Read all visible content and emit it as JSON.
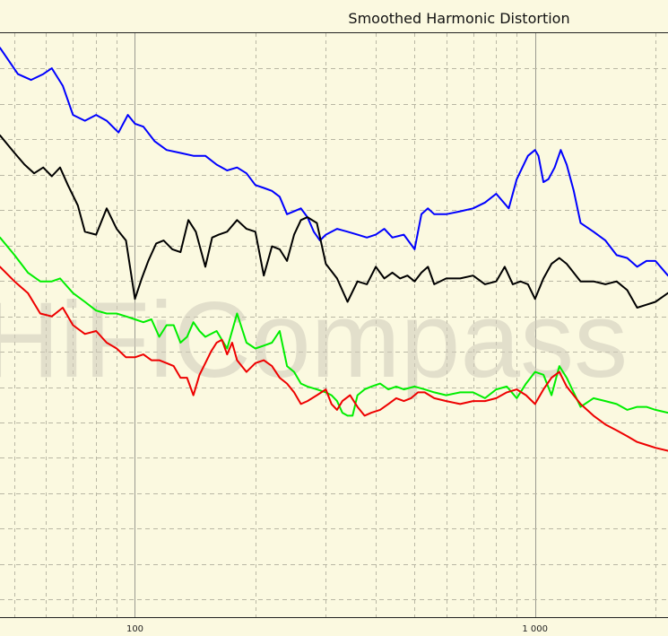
{
  "chart_data": {
    "type": "line",
    "title": "Smoothed Harmonic Distortion",
    "watermark": "HiFiCompass",
    "x_scale": "log",
    "xlim": [
      46,
      2150
    ],
    "ylim": [
      0,
      1
    ],
    "x_tick_labels": [
      {
        "x": 100,
        "label": "100"
      },
      {
        "x": 1000,
        "label": "1 000"
      }
    ],
    "y_gridlines": 16,
    "grid": true,
    "background_color": "#fbf9e0",
    "series": [
      {
        "color": "#0000ff",
        "points": [
          [
            46,
            0.975
          ],
          [
            51,
            0.93
          ],
          [
            55,
            0.92
          ],
          [
            59,
            0.93
          ],
          [
            62,
            0.94
          ],
          [
            66,
            0.91
          ],
          [
            70,
            0.86
          ],
          [
            75,
            0.85
          ],
          [
            80,
            0.86
          ],
          [
            85,
            0.85
          ],
          [
            91,
            0.83
          ],
          [
            96,
            0.86
          ],
          [
            100,
            0.845
          ],
          [
            105,
            0.84
          ],
          [
            112,
            0.815
          ],
          [
            120,
            0.8
          ],
          [
            130,
            0.795
          ],
          [
            140,
            0.79
          ],
          [
            150,
            0.79
          ],
          [
            160,
            0.775
          ],
          [
            170,
            0.765
          ],
          [
            180,
            0.77
          ],
          [
            190,
            0.76
          ],
          [
            200,
            0.74
          ],
          [
            210,
            0.735
          ],
          [
            220,
            0.73
          ],
          [
            230,
            0.72
          ],
          [
            240,
            0.69
          ],
          [
            250,
            0.695
          ],
          [
            260,
            0.7
          ],
          [
            270,
            0.685
          ],
          [
            280,
            0.66
          ],
          [
            290,
            0.645
          ],
          [
            300,
            0.655
          ],
          [
            320,
            0.665
          ],
          [
            340,
            0.66
          ],
          [
            360,
            0.655
          ],
          [
            380,
            0.65
          ],
          [
            400,
            0.655
          ],
          [
            420,
            0.665
          ],
          [
            440,
            0.65
          ],
          [
            470,
            0.655
          ],
          [
            500,
            0.63
          ],
          [
            520,
            0.69
          ],
          [
            540,
            0.7
          ],
          [
            560,
            0.69
          ],
          [
            600,
            0.69
          ],
          [
            650,
            0.695
          ],
          [
            700,
            0.7
          ],
          [
            750,
            0.71
          ],
          [
            800,
            0.725
          ],
          [
            860,
            0.7
          ],
          [
            900,
            0.75
          ],
          [
            960,
            0.79
          ],
          [
            1000,
            0.8
          ],
          [
            1020,
            0.79
          ],
          [
            1050,
            0.745
          ],
          [
            1080,
            0.75
          ],
          [
            1120,
            0.77
          ],
          [
            1160,
            0.8
          ],
          [
            1200,
            0.775
          ],
          [
            1250,
            0.73
          ],
          [
            1300,
            0.675
          ],
          [
            1400,
            0.66
          ],
          [
            1500,
            0.645
          ],
          [
            1600,
            0.62
          ],
          [
            1700,
            0.615
          ],
          [
            1800,
            0.6
          ],
          [
            1900,
            0.61
          ],
          [
            2000,
            0.61
          ],
          [
            2150,
            0.585
          ]
        ]
      },
      {
        "color": "#000000",
        "points": [
          [
            46,
            0.825
          ],
          [
            50,
            0.795
          ],
          [
            53,
            0.775
          ],
          [
            56,
            0.76
          ],
          [
            59,
            0.77
          ],
          [
            62,
            0.755
          ],
          [
            65,
            0.77
          ],
          [
            68,
            0.74
          ],
          [
            72,
            0.705
          ],
          [
            75,
            0.66
          ],
          [
            80,
            0.655
          ],
          [
            85,
            0.7
          ],
          [
            90,
            0.665
          ],
          [
            95,
            0.645
          ],
          [
            100,
            0.545
          ],
          [
            104,
            0.58
          ],
          [
            108,
            0.61
          ],
          [
            113,
            0.64
          ],
          [
            118,
            0.645
          ],
          [
            124,
            0.63
          ],
          [
            130,
            0.625
          ],
          [
            136,
            0.68
          ],
          [
            142,
            0.66
          ],
          [
            150,
            0.6
          ],
          [
            156,
            0.65
          ],
          [
            162,
            0.655
          ],
          [
            170,
            0.66
          ],
          [
            180,
            0.68
          ],
          [
            190,
            0.665
          ],
          [
            200,
            0.66
          ],
          [
            210,
            0.585
          ],
          [
            220,
            0.635
          ],
          [
            230,
            0.63
          ],
          [
            240,
            0.61
          ],
          [
            250,
            0.655
          ],
          [
            260,
            0.68
          ],
          [
            270,
            0.685
          ],
          [
            285,
            0.675
          ],
          [
            300,
            0.605
          ],
          [
            320,
            0.58
          ],
          [
            340,
            0.54
          ],
          [
            360,
            0.575
          ],
          [
            380,
            0.57
          ],
          [
            400,
            0.6
          ],
          [
            420,
            0.58
          ],
          [
            440,
            0.59
          ],
          [
            460,
            0.58
          ],
          [
            480,
            0.585
          ],
          [
            500,
            0.575
          ],
          [
            520,
            0.59
          ],
          [
            540,
            0.6
          ],
          [
            560,
            0.57
          ],
          [
            600,
            0.58
          ],
          [
            650,
            0.58
          ],
          [
            700,
            0.585
          ],
          [
            750,
            0.57
          ],
          [
            800,
            0.575
          ],
          [
            840,
            0.6
          ],
          [
            880,
            0.57
          ],
          [
            920,
            0.575
          ],
          [
            960,
            0.57
          ],
          [
            1000,
            0.545
          ],
          [
            1050,
            0.58
          ],
          [
            1100,
            0.605
          ],
          [
            1150,
            0.615
          ],
          [
            1200,
            0.605
          ],
          [
            1300,
            0.575
          ],
          [
            1400,
            0.575
          ],
          [
            1500,
            0.57
          ],
          [
            1600,
            0.575
          ],
          [
            1700,
            0.56
          ],
          [
            1800,
            0.53
          ],
          [
            1900,
            0.535
          ],
          [
            2000,
            0.54
          ],
          [
            2150,
            0.555
          ]
        ]
      },
      {
        "color": "#00ee00",
        "points": [
          [
            46,
            0.65
          ],
          [
            50,
            0.62
          ],
          [
            54,
            0.59
          ],
          [
            58,
            0.575
          ],
          [
            62,
            0.575
          ],
          [
            65,
            0.58
          ],
          [
            70,
            0.555
          ],
          [
            75,
            0.54
          ],
          [
            80,
            0.525
          ],
          [
            85,
            0.52
          ],
          [
            90,
            0.52
          ],
          [
            95,
            0.515
          ],
          [
            100,
            0.51
          ],
          [
            105,
            0.505
          ],
          [
            110,
            0.51
          ],
          [
            115,
            0.48
          ],
          [
            120,
            0.5
          ],
          [
            125,
            0.5
          ],
          [
            130,
            0.47
          ],
          [
            135,
            0.48
          ],
          [
            140,
            0.505
          ],
          [
            145,
            0.49
          ],
          [
            150,
            0.48
          ],
          [
            160,
            0.49
          ],
          [
            170,
            0.46
          ],
          [
            180,
            0.52
          ],
          [
            190,
            0.47
          ],
          [
            200,
            0.46
          ],
          [
            210,
            0.465
          ],
          [
            220,
            0.47
          ],
          [
            230,
            0.49
          ],
          [
            240,
            0.43
          ],
          [
            250,
            0.42
          ],
          [
            260,
            0.4
          ],
          [
            270,
            0.395
          ],
          [
            285,
            0.39
          ],
          [
            300,
            0.385
          ],
          [
            310,
            0.38
          ],
          [
            320,
            0.37
          ],
          [
            330,
            0.35
          ],
          [
            340,
            0.345
          ],
          [
            350,
            0.345
          ],
          [
            360,
            0.38
          ],
          [
            375,
            0.39
          ],
          [
            390,
            0.395
          ],
          [
            410,
            0.4
          ],
          [
            430,
            0.39
          ],
          [
            450,
            0.395
          ],
          [
            470,
            0.39
          ],
          [
            500,
            0.395
          ],
          [
            530,
            0.39
          ],
          [
            560,
            0.385
          ],
          [
            600,
            0.38
          ],
          [
            650,
            0.385
          ],
          [
            700,
            0.385
          ],
          [
            750,
            0.375
          ],
          [
            800,
            0.39
          ],
          [
            850,
            0.395
          ],
          [
            900,
            0.375
          ],
          [
            950,
            0.4
          ],
          [
            1000,
            0.42
          ],
          [
            1050,
            0.415
          ],
          [
            1100,
            0.38
          ],
          [
            1150,
            0.43
          ],
          [
            1200,
            0.41
          ],
          [
            1300,
            0.36
          ],
          [
            1400,
            0.375
          ],
          [
            1500,
            0.37
          ],
          [
            1600,
            0.365
          ],
          [
            1700,
            0.355
          ],
          [
            1800,
            0.36
          ],
          [
            1900,
            0.36
          ],
          [
            2000,
            0.355
          ],
          [
            2150,
            0.35
          ]
        ]
      },
      {
        "color": "#ee0000",
        "points": [
          [
            46,
            0.6
          ],
          [
            50,
            0.575
          ],
          [
            54,
            0.555
          ],
          [
            58,
            0.52
          ],
          [
            62,
            0.515
          ],
          [
            66,
            0.53
          ],
          [
            70,
            0.5
          ],
          [
            75,
            0.485
          ],
          [
            80,
            0.49
          ],
          [
            85,
            0.47
          ],
          [
            90,
            0.46
          ],
          [
            95,
            0.445
          ],
          [
            100,
            0.445
          ],
          [
            105,
            0.45
          ],
          [
            110,
            0.44
          ],
          [
            115,
            0.44
          ],
          [
            120,
            0.435
          ],
          [
            125,
            0.43
          ],
          [
            130,
            0.41
          ],
          [
            135,
            0.41
          ],
          [
            140,
            0.38
          ],
          [
            145,
            0.415
          ],
          [
            150,
            0.435
          ],
          [
            155,
            0.455
          ],
          [
            160,
            0.47
          ],
          [
            165,
            0.475
          ],
          [
            170,
            0.45
          ],
          [
            175,
            0.47
          ],
          [
            180,
            0.44
          ],
          [
            190,
            0.42
          ],
          [
            200,
            0.435
          ],
          [
            210,
            0.44
          ],
          [
            220,
            0.43
          ],
          [
            230,
            0.41
          ],
          [
            240,
            0.4
          ],
          [
            250,
            0.385
          ],
          [
            260,
            0.365
          ],
          [
            270,
            0.37
          ],
          [
            285,
            0.38
          ],
          [
            300,
            0.39
          ],
          [
            310,
            0.365
          ],
          [
            320,
            0.355
          ],
          [
            330,
            0.37
          ],
          [
            345,
            0.38
          ],
          [
            360,
            0.36
          ],
          [
            375,
            0.345
          ],
          [
            390,
            0.35
          ],
          [
            410,
            0.355
          ],
          [
            430,
            0.365
          ],
          [
            450,
            0.375
          ],
          [
            470,
            0.37
          ],
          [
            490,
            0.375
          ],
          [
            510,
            0.385
          ],
          [
            530,
            0.385
          ],
          [
            560,
            0.375
          ],
          [
            600,
            0.37
          ],
          [
            650,
            0.365
          ],
          [
            700,
            0.37
          ],
          [
            750,
            0.37
          ],
          [
            800,
            0.375
          ],
          [
            850,
            0.385
          ],
          [
            900,
            0.39
          ],
          [
            950,
            0.38
          ],
          [
            1000,
            0.365
          ],
          [
            1050,
            0.39
          ],
          [
            1100,
            0.41
          ],
          [
            1150,
            0.42
          ],
          [
            1200,
            0.395
          ],
          [
            1300,
            0.365
          ],
          [
            1400,
            0.345
          ],
          [
            1500,
            0.33
          ],
          [
            1600,
            0.32
          ],
          [
            1700,
            0.31
          ],
          [
            1800,
            0.3
          ],
          [
            1900,
            0.295
          ],
          [
            2000,
            0.29
          ],
          [
            2150,
            0.285
          ]
        ]
      }
    ]
  }
}
